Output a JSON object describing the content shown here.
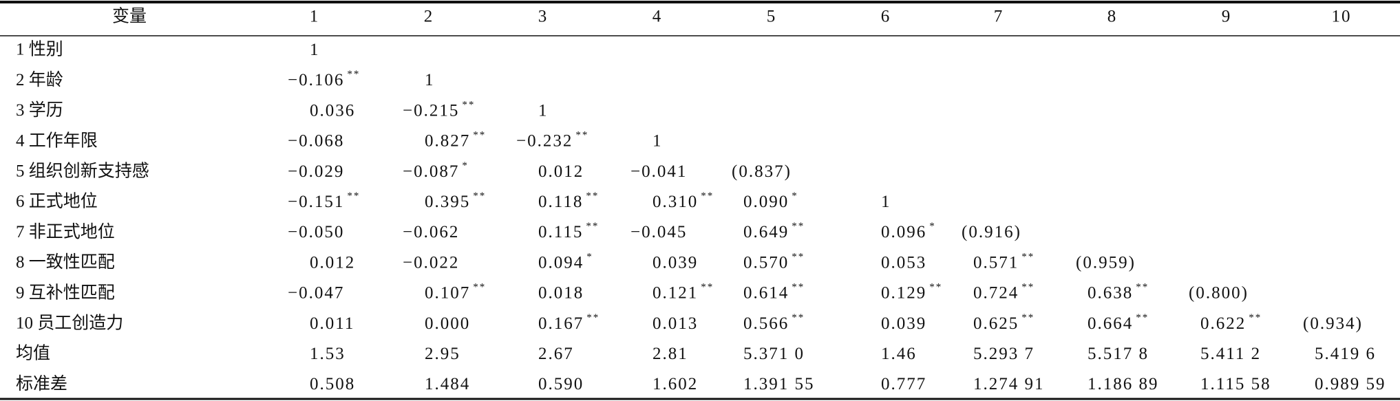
{
  "table": {
    "header": [
      "变量",
      "1",
      "2",
      "3",
      "4",
      "5",
      "6",
      "7",
      "8",
      "9",
      "10"
    ],
    "rows": [
      {
        "label": "1 性别",
        "cells": [
          {
            "text": "1"
          }
        ]
      },
      {
        "label": "2 年龄",
        "cells": [
          {
            "text": "−0.106",
            "sig": "**"
          },
          {
            "text": "1"
          }
        ]
      },
      {
        "label": "3 学历",
        "cells": [
          {
            "text": "0.036"
          },
          {
            "text": "−0.215",
            "sig": "**"
          },
          {
            "text": "1"
          }
        ]
      },
      {
        "label": "4 工作年限",
        "cells": [
          {
            "text": "−0.068"
          },
          {
            "text": "0.827",
            "sig": "**"
          },
          {
            "text": "−0.232",
            "sig": "**"
          },
          {
            "text": "1"
          }
        ]
      },
      {
        "label": "5 组织创新支持感",
        "cells": [
          {
            "text": "−0.029"
          },
          {
            "text": "−0.087",
            "sig": "*"
          },
          {
            "text": "0.012"
          },
          {
            "text": "−0.041"
          },
          {
            "text": "(0.837)"
          }
        ]
      },
      {
        "label": "6 正式地位",
        "cells": [
          {
            "text": "−0.151",
            "sig": "**"
          },
          {
            "text": "0.395",
            "sig": "**"
          },
          {
            "text": "0.118",
            "sig": "**"
          },
          {
            "text": "0.310",
            "sig": "**"
          },
          {
            "text": "0.090",
            "sig": "*"
          },
          {
            "text": "1"
          }
        ]
      },
      {
        "label": "7 非正式地位",
        "cells": [
          {
            "text": "−0.050"
          },
          {
            "text": "−0.062"
          },
          {
            "text": "0.115",
            "sig": "**"
          },
          {
            "text": "−0.045"
          },
          {
            "text": "0.649",
            "sig": "**"
          },
          {
            "text": "0.096",
            "sig": "*"
          },
          {
            "text": "(0.916)"
          }
        ]
      },
      {
        "label": "8 一致性匹配",
        "cells": [
          {
            "text": "0.012"
          },
          {
            "text": "−0.022"
          },
          {
            "text": "0.094",
            "sig": "*"
          },
          {
            "text": "0.039"
          },
          {
            "text": "0.570",
            "sig": "**"
          },
          {
            "text": "0.053"
          },
          {
            "text": "0.571",
            "sig": "**"
          },
          {
            "text": "(0.959)"
          }
        ]
      },
      {
        "label": "9 互补性匹配",
        "cells": [
          {
            "text": "−0.047"
          },
          {
            "text": "0.107",
            "sig": "**"
          },
          {
            "text": "0.018"
          },
          {
            "text": "0.121",
            "sig": "**"
          },
          {
            "text": "0.614",
            "sig": "**"
          },
          {
            "text": "0.129",
            "sig": "**"
          },
          {
            "text": "0.724",
            "sig": "**"
          },
          {
            "text": "0.638",
            "sig": "**"
          },
          {
            "text": "(0.800)"
          }
        ]
      },
      {
        "label": "10 员工创造力",
        "cells": [
          {
            "text": "0.011"
          },
          {
            "text": "0.000"
          },
          {
            "text": "0.167",
            "sig": "**"
          },
          {
            "text": "0.013"
          },
          {
            "text": "0.566",
            "sig": "**"
          },
          {
            "text": "0.039"
          },
          {
            "text": "0.625",
            "sig": "**"
          },
          {
            "text": "0.664",
            "sig": "**"
          },
          {
            "text": "0.622",
            "sig": "**"
          },
          {
            "text": "(0.934)"
          }
        ]
      },
      {
        "label": "均值",
        "cells": [
          {
            "text": "1.53"
          },
          {
            "text": "2.95"
          },
          {
            "text": "2.67"
          },
          {
            "text": "2.81"
          },
          {
            "text": "5.371 0"
          },
          {
            "text": "1.46"
          },
          {
            "text": "5.293 7"
          },
          {
            "text": "5.517 8"
          },
          {
            "text": "5.411 2"
          },
          {
            "text": "5.419 6"
          }
        ]
      },
      {
        "label": "标准差",
        "cells": [
          {
            "text": "0.508"
          },
          {
            "text": "1.484"
          },
          {
            "text": "0.590"
          },
          {
            "text": "1.602"
          },
          {
            "text": "1.391 55"
          },
          {
            "text": "0.777"
          },
          {
            "text": "1.274 91"
          },
          {
            "text": "1.186 89"
          },
          {
            "text": "1.115 58"
          },
          {
            "text": "0.989 59"
          }
        ]
      }
    ]
  }
}
